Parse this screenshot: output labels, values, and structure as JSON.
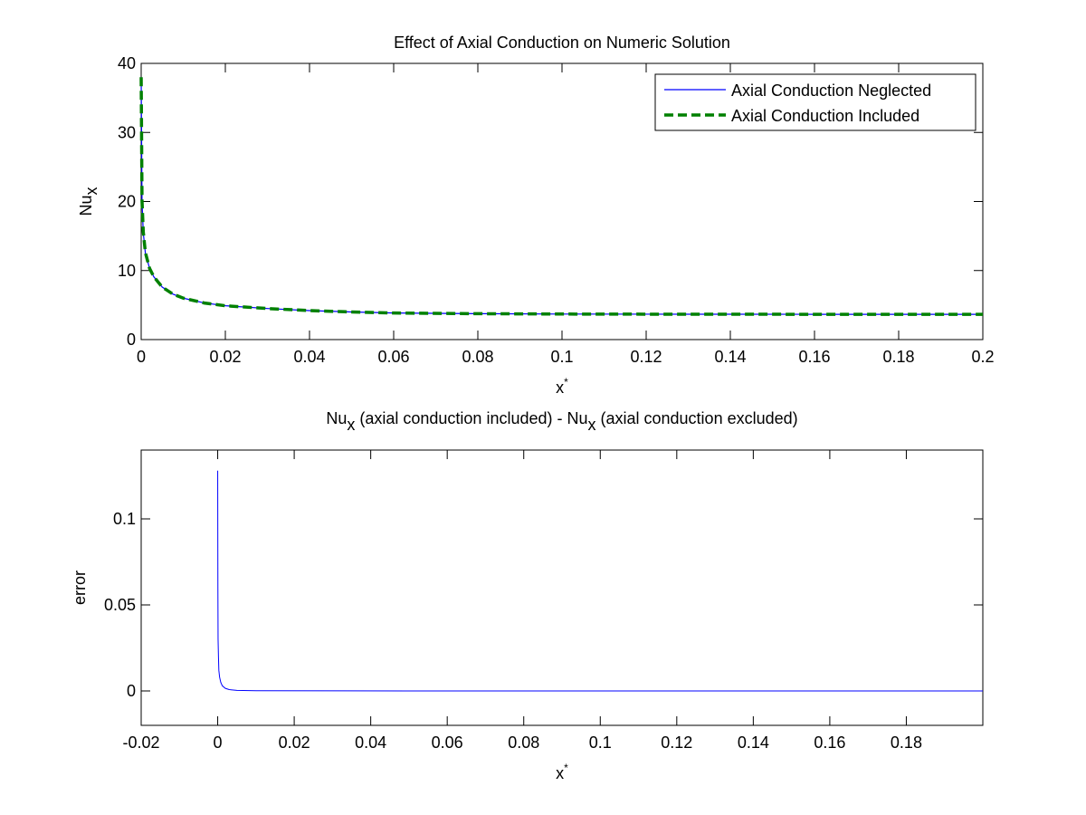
{
  "chart_data": [
    {
      "type": "line",
      "title": "Effect of Axial Conduction on Numeric Solution",
      "xlabel": {
        "base": "x",
        "sup": "*"
      },
      "ylabel": {
        "base": "Nu",
        "sub": "x"
      },
      "xlim": [
        0,
        0.2
      ],
      "ylim": [
        0,
        40
      ],
      "xticks": [
        "0",
        "0.02",
        "0.04",
        "0.06",
        "0.08",
        "0.1",
        "0.12",
        "0.14",
        "0.16",
        "0.18",
        "0.2"
      ],
      "yticks": [
        "0",
        "10",
        "20",
        "30",
        "40"
      ],
      "legend_position": "top-right",
      "series": [
        {
          "name": "Axial Conduction Neglected",
          "color": "#0000ff",
          "style": "solid",
          "x": [
            0.0,
            0.0002,
            0.0005,
            0.001,
            0.002,
            0.003,
            0.005,
            0.0075,
            0.01,
            0.015,
            0.02,
            0.03,
            0.04,
            0.05,
            0.06,
            0.08,
            0.1,
            0.12,
            0.14,
            0.16,
            0.18,
            0.2
          ],
          "y": [
            38.0,
            20.0,
            15.5,
            12.5,
            10.3,
            9.1,
            7.6,
            6.6,
            6.0,
            5.3,
            4.9,
            4.5,
            4.2,
            4.0,
            3.85,
            3.75,
            3.7,
            3.68,
            3.67,
            3.66,
            3.66,
            3.66
          ]
        },
        {
          "name": "Axial Conduction Included",
          "color": "#008000",
          "style": "dashed",
          "x": [
            0.0,
            0.0002,
            0.0005,
            0.001,
            0.002,
            0.003,
            0.005,
            0.0075,
            0.01,
            0.015,
            0.02,
            0.03,
            0.04,
            0.05,
            0.06,
            0.08,
            0.1,
            0.12,
            0.14,
            0.16,
            0.18,
            0.2
          ],
          "y": [
            38.0,
            20.1,
            15.6,
            12.6,
            10.3,
            9.1,
            7.6,
            6.6,
            6.0,
            5.3,
            4.9,
            4.5,
            4.2,
            4.0,
            3.85,
            3.75,
            3.7,
            3.68,
            3.67,
            3.66,
            3.66,
            3.66
          ]
        }
      ]
    },
    {
      "type": "line",
      "title": {
        "part1": "Nu",
        "sub1": "x",
        "part2": " (axial conduction included) - Nu",
        "sub2": "x",
        "part3": " (axial conduction excluded)"
      },
      "xlabel": {
        "base": "x",
        "sup": "*"
      },
      "ylabel": "error",
      "xlim": [
        -0.02,
        0.2
      ],
      "ylim": [
        -0.02,
        0.14
      ],
      "xticks": [
        {
          "value": -0.02,
          "label": "-0.02"
        },
        {
          "value": 0,
          "label": "0"
        },
        {
          "value": 0.02,
          "label": "0.02"
        },
        {
          "value": 0.04,
          "label": "0.04"
        },
        {
          "value": 0.06,
          "label": "0.06"
        },
        {
          "value": 0.08,
          "label": "0.08"
        },
        {
          "value": 0.1,
          "label": "0.1"
        },
        {
          "value": 0.12,
          "label": "0.12"
        },
        {
          "value": 0.14,
          "label": "0.14"
        },
        {
          "value": 0.16,
          "label": "0.16"
        },
        {
          "value": 0.18,
          "label": "0.18"
        }
      ],
      "yticks": [
        {
          "value": 0,
          "label": "0"
        },
        {
          "value": 0.05,
          "label": "0.05"
        },
        {
          "value": 0.1,
          "label": "0.1"
        }
      ],
      "series": [
        {
          "color": "#0000ff",
          "style": "solid",
          "x": [
            0.0,
            5e-05,
            0.0001,
            0.0002,
            0.0003,
            0.0005,
            0.0008,
            0.0012,
            0.002,
            0.003,
            0.005,
            0.01,
            0.05,
            0.1,
            0.15,
            0.2
          ],
          "y": [
            0.128,
            0.06,
            0.03,
            0.02,
            0.012,
            0.008,
            0.005,
            0.003,
            0.0015,
            0.0008,
            0.0003,
            0.0001,
            0.0,
            0.0,
            0.0,
            0.0
          ]
        }
      ]
    }
  ]
}
